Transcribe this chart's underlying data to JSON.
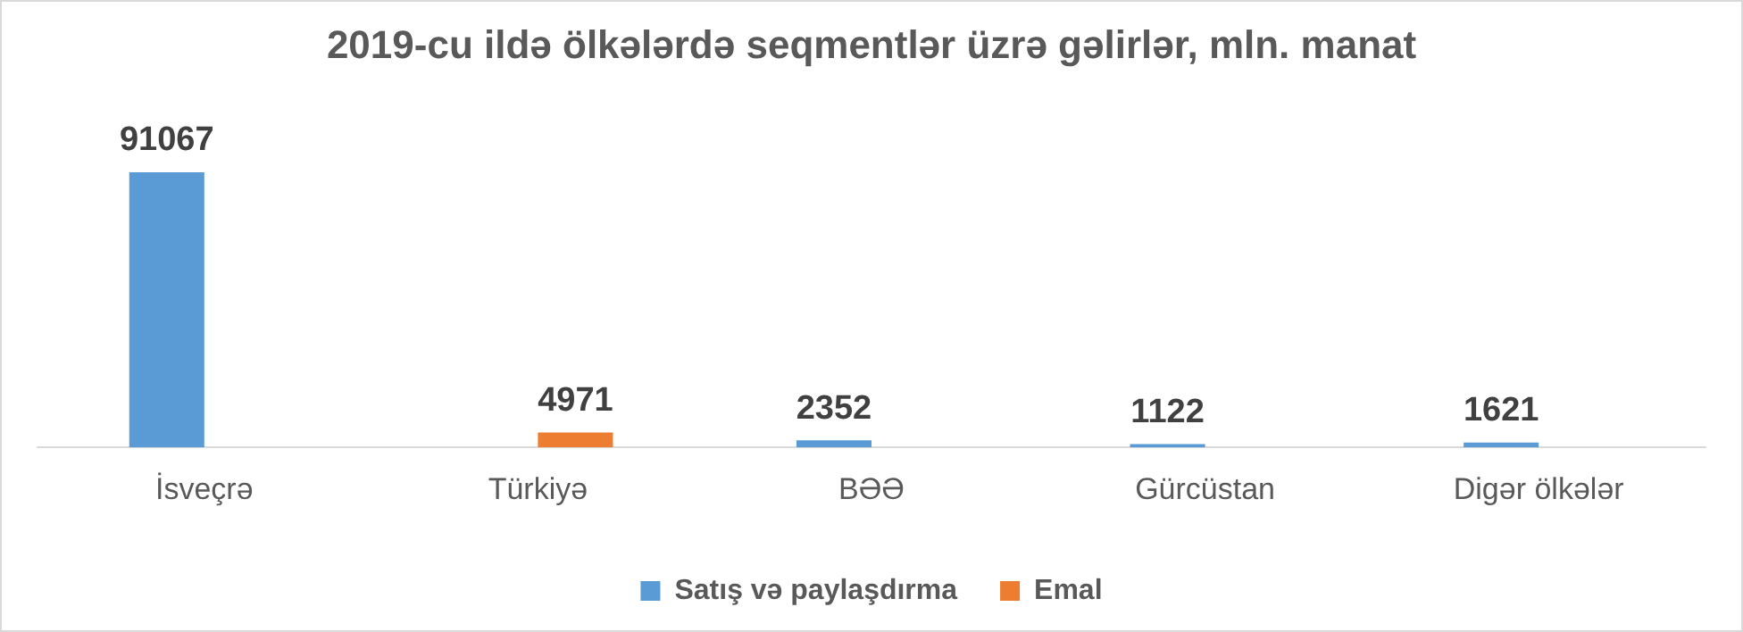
{
  "chart_data": {
    "type": "bar",
    "title": "2019-cu ildə ölkələrdə seqmentlər üzrə gəlirlər, mln. manat",
    "categories": [
      "İsveçrə",
      "Türkiyə",
      "BƏƏ",
      "Gürcüstan",
      "Digər ölkələr"
    ],
    "series": [
      {
        "name": "Satış və paylaşdırma",
        "color": "#5b9bd5",
        "values": [
          91067,
          null,
          2352,
          1122,
          1621
        ]
      },
      {
        "name": "Emal",
        "color": "#ed7d31",
        "values": [
          null,
          4971,
          null,
          null,
          null
        ]
      }
    ],
    "data_labels": true,
    "legend": "bottom",
    "grid": false
  }
}
